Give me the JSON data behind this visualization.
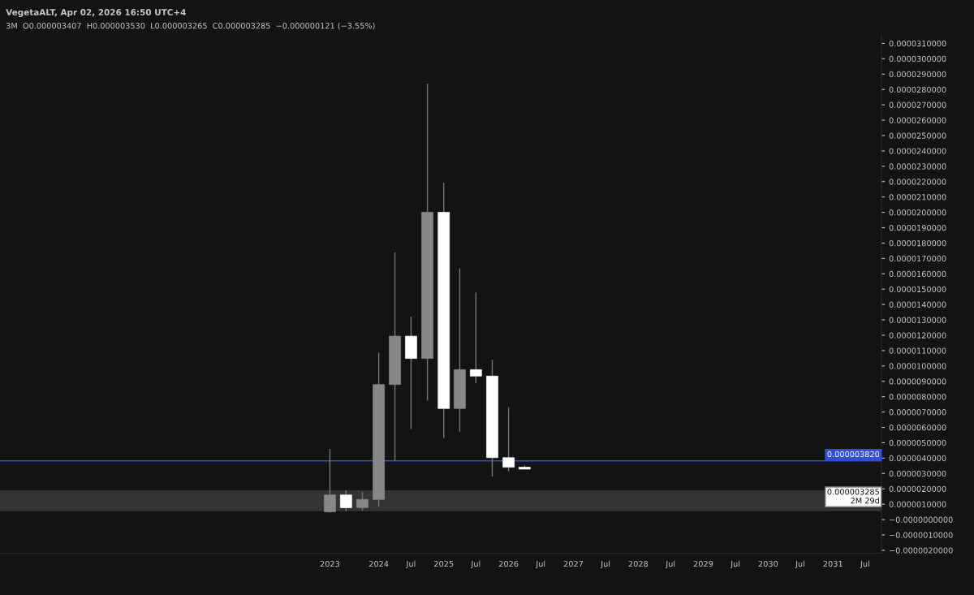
{
  "chart_data": {
    "type": "candlestick",
    "title": "VegetaALT, Apr 02, 2026 16:50 UTC+4",
    "subtitle": "3M  O0.000003407  H0.000003530  L0.000003265  C0.000003285  −0.000000121 (−3.55%)",
    "x": [
      "2023-04",
      "2023-07",
      "2023-10",
      "2024-01",
      "2024-04",
      "2024-07",
      "2024-10",
      "2025-01",
      "2025-04",
      "2025-07",
      "2025-10",
      "2026-01",
      "2026-04"
    ],
    "ohlc": [
      [
        5e-07,
        4.6e-06,
        4.5e-07,
        1.6e-06
      ],
      [
        1.6e-06,
        1.9e-06,
        5.5e-07,
        7.7e-07
      ],
      [
        7.8e-07,
        1.79e-06,
        6e-07,
        1.31e-06
      ],
      [
        1.31e-06,
        1.087e-05,
        8.3e-07,
        8.79e-06
      ],
      [
        8.79e-06,
        1.74e-05,
        3.82e-06,
        1.194e-05
      ],
      [
        1.194e-05,
        1.32e-05,
        5.9e-06,
        1.049e-05
      ],
      [
        1.049e-05,
        2.838e-05,
        7.74e-06,
        2e-05
      ],
      [
        2e-05,
        2.192e-05,
        5.31e-06,
        7.23e-06
      ],
      [
        7.23e-06,
        1.636e-05,
        5.73e-06,
        9.76e-06
      ],
      [
        9.76e-06,
        1.478e-05,
        8.88e-06,
        9.34e-06
      ],
      [
        9.34e-06,
        1.041e-05,
        2.81e-06,
        4.03e-06
      ],
      [
        4.03e-06,
        7.31e-06,
        3.15e-06,
        3.407e-06
      ],
      [
        3.407e-06,
        3.53e-06,
        3.265e-06,
        3.285e-06
      ]
    ],
    "colors": [
      "#888888",
      "#ffffff",
      "#888888",
      "#888888",
      "#888888",
      "#ffffff",
      "#888888",
      "#ffffff",
      "#888888",
      "#ffffff",
      "#ffffff",
      "#ffffff",
      "#ffffff"
    ],
    "xlim": [
      "2018-03",
      "2031-10"
    ],
    "xticks": [
      {
        "value": "2023-04",
        "label": "2023"
      },
      {
        "value": "2024-01",
        "label": "2024"
      },
      {
        "value": "2024-07",
        "label": "Jul"
      },
      {
        "value": "2025-01",
        "label": "2025"
      },
      {
        "value": "2025-07",
        "label": "Jul"
      },
      {
        "value": "2026-01",
        "label": "2026"
      },
      {
        "value": "2026-07",
        "label": "Jul"
      },
      {
        "value": "2027-01",
        "label": "2027"
      },
      {
        "value": "2027-07",
        "label": "Jul"
      },
      {
        "value": "2028-01",
        "label": "2028"
      },
      {
        "value": "2028-07",
        "label": "Jul"
      },
      {
        "value": "2029-01",
        "label": "2029"
      },
      {
        "value": "2029-07",
        "label": "Jul"
      },
      {
        "value": "2030-01",
        "label": "2030"
      },
      {
        "value": "2030-07",
        "label": "Jul"
      },
      {
        "value": "2031-01",
        "label": "2031"
      },
      {
        "value": "2031-07",
        "label": "Jul"
      }
    ],
    "ylim": [
      -2.2e-06,
      3.15e-05
    ],
    "yticks": [
      {
        "value": -2e-06,
        "label": "−0.0000020000"
      },
      {
        "value": -1e-06,
        "label": "−0.0000010000"
      },
      {
        "value": 0,
        "label": "−0.0000000000"
      },
      {
        "value": 1e-06,
        "label": "0.0000010000"
      },
      {
        "value": 2e-06,
        "label": "0.0000020000"
      },
      {
        "value": 3e-06,
        "label": "0.0000030000"
      },
      {
        "value": 4e-06,
        "label": "0.0000040000"
      },
      {
        "value": 5e-06,
        "label": "0.0000050000"
      },
      {
        "value": 6e-06,
        "label": "0.0000060000"
      },
      {
        "value": 7e-06,
        "label": "0.0000070000"
      },
      {
        "value": 8e-06,
        "label": "0.0000080000"
      },
      {
        "value": 9e-06,
        "label": "0.0000090000"
      },
      {
        "value": 1e-05,
        "label": "0.0000100000"
      },
      {
        "value": 1.1e-05,
        "label": "0.0000110000"
      },
      {
        "value": 1.2e-05,
        "label": "0.0000120000"
      },
      {
        "value": 1.3e-05,
        "label": "0.0000130000"
      },
      {
        "value": 1.4e-05,
        "label": "0.0000140000"
      },
      {
        "value": 1.5e-05,
        "label": "0.0000150000"
      },
      {
        "value": 1.6e-05,
        "label": "0.0000160000"
      },
      {
        "value": 1.7e-05,
        "label": "0.0000170000"
      },
      {
        "value": 1.8e-05,
        "label": "0.0000180000"
      },
      {
        "value": 1.9e-05,
        "label": "0.0000190000"
      },
      {
        "value": 2e-05,
        "label": "0.0000200000"
      },
      {
        "value": 2.1e-05,
        "label": "0.0000210000"
      },
      {
        "value": 2.2e-05,
        "label": "0.0000220000"
      },
      {
        "value": 2.3e-05,
        "label": "0.0000230000"
      },
      {
        "value": 2.4e-05,
        "label": "0.0000240000"
      },
      {
        "value": 2.5e-05,
        "label": "0.0000250000"
      },
      {
        "value": 2.6e-05,
        "label": "0.0000260000"
      },
      {
        "value": 2.7e-05,
        "label": "0.0000270000"
      },
      {
        "value": 2.8e-05,
        "label": "0.0000280000"
      },
      {
        "value": 2.9e-05,
        "label": "0.0000290000"
      },
      {
        "value": 3e-05,
        "label": "0.0000300000"
      },
      {
        "value": 3.1e-05,
        "label": "0.0000310000"
      }
    ],
    "ref_lines": [
      {
        "axis": "y",
        "value": 3.82e-06,
        "label": "0.000003820",
        "color": "#2f4fd8",
        "line_style": "solid"
      }
    ],
    "bands": [
      {
        "axis": "y",
        "from": 5.5e-07,
        "to": 1.9e-06,
        "color": "#333333"
      }
    ],
    "annotations": [
      "0.000003285\n2M 29d"
    ],
    "grid": false,
    "legend": false
  }
}
